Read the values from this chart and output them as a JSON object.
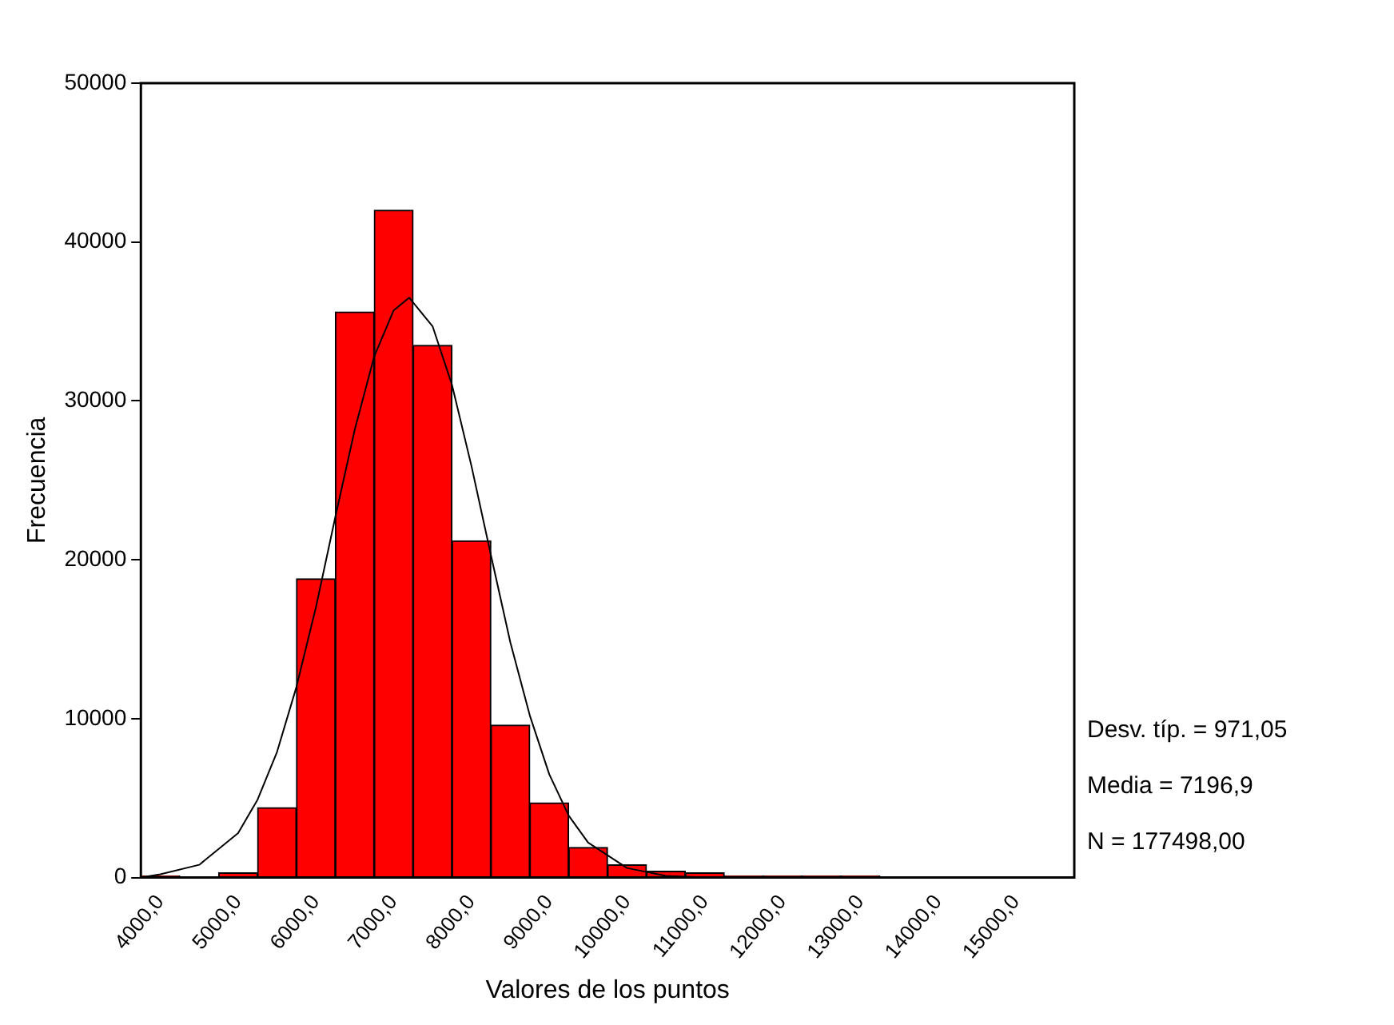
{
  "chart_data": {
    "type": "histogram",
    "xlabel": "Valores de los puntos",
    "ylabel": "Frecuencia",
    "bins": [
      3750,
      4250,
      4750,
      5250,
      5750,
      6250,
      6750,
      7250,
      7750,
      8250,
      8750,
      9250,
      9750,
      10250,
      10750,
      11250,
      11750,
      12250,
      12750,
      13250
    ],
    "values": [
      100,
      0,
      300,
      4400,
      18800,
      35600,
      42000,
      33500,
      21200,
      9600,
      4700,
      1900,
      800,
      400,
      300,
      100,
      100,
      100,
      100
    ],
    "color": "#ff0000",
    "series": [
      {
        "type": "line",
        "color": "#000000",
        "x": [
          3750,
          4000,
          4500,
          5000,
          5250,
          5500,
          5750,
          6000,
          6250,
          6500,
          6750,
          7000,
          7200,
          7500,
          7750,
          8000,
          8250,
          8500,
          8750,
          9000,
          9250,
          9500,
          10000,
          10500,
          11000
        ],
        "values": [
          0,
          200,
          800,
          2800,
          4900,
          7900,
          12000,
          17000,
          22700,
          28200,
          32800,
          35700,
          36500,
          34700,
          31000,
          25900,
          20300,
          14800,
          10200,
          6500,
          3900,
          2200,
          600,
          100,
          0
        ]
      }
    ],
    "xlim": [
      3750,
      15750
    ],
    "xticks": [
      {
        "value": 4000,
        "label": "4000,0"
      },
      {
        "value": 5000,
        "label": "5000,0"
      },
      {
        "value": 6000,
        "label": "6000,0"
      },
      {
        "value": 7000,
        "label": "7000,0"
      },
      {
        "value": 8000,
        "label": "8000,0"
      },
      {
        "value": 9000,
        "label": "9000,0"
      },
      {
        "value": 10000,
        "label": "10000,0"
      },
      {
        "value": 11000,
        "label": "11000,0"
      },
      {
        "value": 12000,
        "label": "12000,0"
      },
      {
        "value": 13000,
        "label": "13000,0"
      },
      {
        "value": 14000,
        "label": "14000,0"
      },
      {
        "value": 15000,
        "label": "15000,0"
      }
    ],
    "ylim": [
      0,
      50000
    ],
    "yticks": [
      0,
      10000,
      20000,
      30000,
      40000,
      50000
    ],
    "grid": false,
    "annotations": [
      "Desv. típ. = 971,05",
      "Media = 7196,9",
      "N = 177498,00"
    ]
  }
}
